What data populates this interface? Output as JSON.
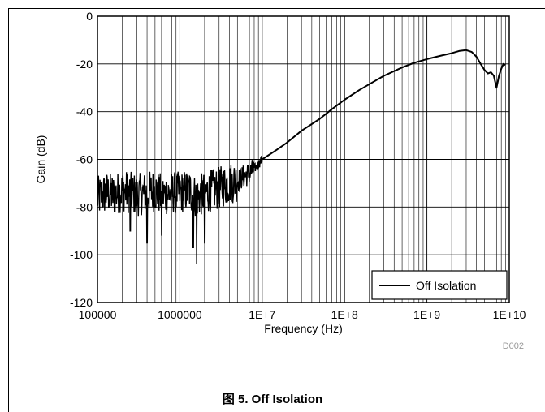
{
  "figure": {
    "caption": "图 5. Off Isolation",
    "code": "D002"
  },
  "chart_data": {
    "type": "line",
    "title": "",
    "xlabel": "Frequency (Hz)",
    "ylabel": "Gain (dB)",
    "xscale": "log",
    "xlim": [
      100000,
      10000000000
    ],
    "ylim": [
      -120,
      0
    ],
    "xticks": [
      100000,
      1000000,
      10000000,
      100000000,
      1000000000,
      10000000000
    ],
    "xtick_labels": [
      "100000",
      "1000000",
      "1E+7",
      "1E+8",
      "1E+9",
      "1E+10"
    ],
    "yticks": [
      0,
      -20,
      -40,
      -60,
      -80,
      -100,
      -120
    ],
    "ytick_labels": [
      "0",
      "-20",
      "-40",
      "-60",
      "-80",
      "-100",
      "-120"
    ],
    "grid": true,
    "legend_position": "bottom-right",
    "series": [
      {
        "name": "Off Isolation",
        "color": "#000000",
        "x": [
          100000,
          130000,
          160000,
          200000,
          250000,
          300000,
          400000,
          500000,
          600000,
          800000,
          1000000,
          1300000,
          1600000,
          2000000,
          2500000,
          3000000,
          4000000,
          5000000,
          6000000,
          7000000,
          8000000,
          9000000,
          10000000,
          15000000,
          20000000,
          30000000,
          50000000,
          70000000,
          100000000,
          150000000,
          200000000,
          300000000,
          500000000,
          700000000,
          1000000000,
          1500000000,
          2000000000,
          2500000000,
          3000000000,
          3500000000,
          4000000000,
          4500000000,
          5000000000,
          5500000000,
          6000000000,
          6500000000,
          7000000000,
          7500000000,
          8000000000,
          8500000000,
          9000000000
        ],
        "y": [
          -76,
          -74,
          -75,
          -73,
          -74,
          -75,
          -74,
          -73,
          -75,
          -74,
          -74,
          -73,
          -76,
          -74,
          -73,
          -72,
          -70,
          -69,
          -67,
          -66,
          -64,
          -62,
          -60,
          -56,
          -53,
          -48,
          -43,
          -39,
          -35,
          -31,
          -28.5,
          -25,
          -21.5,
          -19.5,
          -18,
          -16.5,
          -15.5,
          -14.5,
          -14.2,
          -15,
          -17,
          -20,
          -22.5,
          -24,
          -23.5,
          -25,
          -30,
          -25,
          -22,
          -20,
          -20.5
        ]
      }
    ],
    "noise": {
      "x_range": [
        100000,
        10000000
      ],
      "band_dB": [
        -66,
        -83
      ],
      "dips": [
        {
          "x": 400000,
          "y": -95
        },
        {
          "x": 600000,
          "y": -92
        },
        {
          "x": 1600000,
          "y": -104
        },
        {
          "x": 1450000,
          "y": -97
        },
        {
          "x": 2000000,
          "y": -95
        },
        {
          "x": 250000,
          "y": -90
        }
      ]
    }
  }
}
